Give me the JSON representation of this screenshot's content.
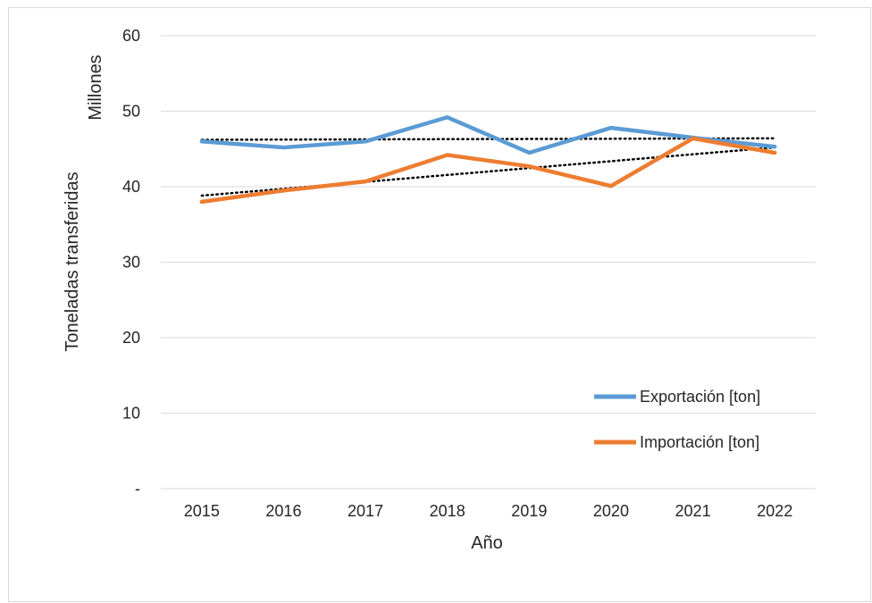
{
  "chart_data": {
    "type": "line",
    "title": "",
    "xlabel": "Año",
    "ylabel": "Toneladas transferidas",
    "y_unit_label": "Millones",
    "categories": [
      "2015",
      "2016",
      "2017",
      "2018",
      "2019",
      "2020",
      "2021",
      "2022"
    ],
    "ylim": [
      0,
      60
    ],
    "yticks": [
      0,
      10,
      20,
      30,
      40,
      50,
      60
    ],
    "ytick_labels": [
      "-",
      "10",
      "20",
      "30",
      "40",
      "50",
      "60"
    ],
    "grid": true,
    "legend_position": "bottom-right",
    "series": [
      {
        "name": "Exportación [ton]",
        "color": "#5b9bd5",
        "values": [
          46.0,
          45.2,
          46.0,
          49.2,
          44.5,
          47.8,
          46.5,
          45.3
        ],
        "trendline": {
          "style": "dotted",
          "color": "#000000"
        }
      },
      {
        "name": "Importación [ton]",
        "color": "#ed7d31",
        "values": [
          38.0,
          39.5,
          40.7,
          44.2,
          42.7,
          40.1,
          46.4,
          44.5
        ],
        "trendline": {
          "style": "dotted",
          "color": "#000000"
        }
      }
    ]
  }
}
